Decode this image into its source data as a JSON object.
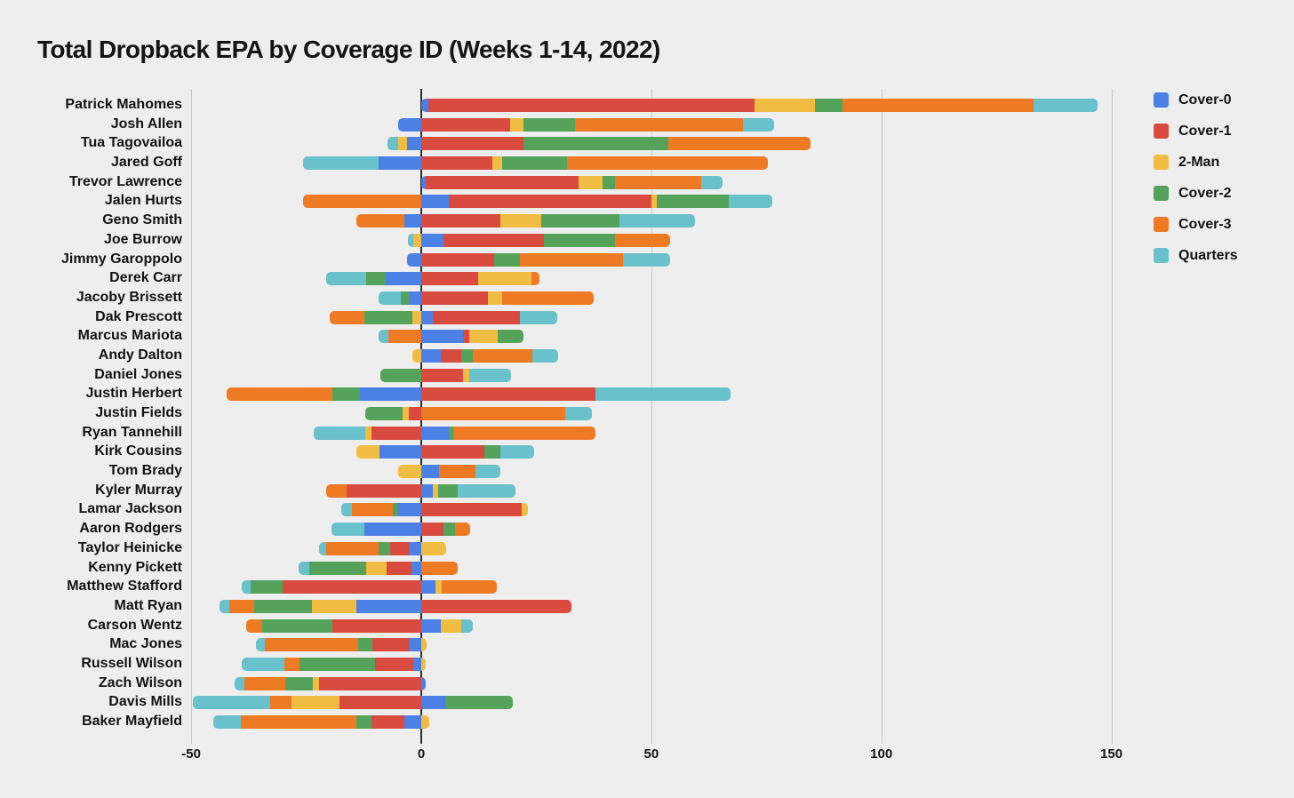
{
  "title": "Total Dropback EPA by Coverage ID (Weeks 1-14, 2022)",
  "colors": {
    "cover0": "#4b80e4",
    "cover1": "#d94b3e",
    "twoman": "#f1bc42",
    "cover2": "#55a25b",
    "cover3": "#ee7a24",
    "quarters": "#68c1cb",
    "background": "#eeeeee",
    "gridline": "#c9c9c9",
    "zero_line": "#2e2e2e",
    "text": "#141414"
  },
  "legend": {
    "items": [
      "Cover-0",
      "Cover-1",
      "2-Man",
      "Cover-2",
      "Cover-3",
      "Quarters"
    ]
  },
  "chart_data": {
    "type": "bar",
    "orientation": "horizontal",
    "stacked": true,
    "title": "Total Dropback EPA by Coverage ID (Weeks 1-14, 2022)",
    "xlabel": "",
    "ylabel": "",
    "x_ticks": [
      -50,
      0,
      50,
      100,
      150
    ],
    "xlim": [
      -52,
      157
    ],
    "grid": true,
    "legend_position": "top-right",
    "categories": [
      "Patrick Mahomes",
      "Josh Allen",
      "Tua Tagovailoa",
      "Jared Goff",
      "Trevor Lawrence",
      "Jalen Hurts",
      "Geno Smith",
      "Joe Burrow",
      "Jimmy Garoppolo",
      "Derek Carr",
      "Jacoby Brissett",
      "Dak Prescott",
      "Marcus Mariota",
      "Andy Dalton",
      "Daniel Jones",
      "Justin Herbert",
      "Justin Fields",
      "Ryan Tannehill",
      "Kirk Cousins",
      "Tom Brady",
      "Kyler Murray",
      "Lamar Jackson",
      "Aaron Rodgers",
      "Taylor Heinicke",
      "Kenny Pickett",
      "Matthew Stafford",
      "Matt Ryan",
      "Carson Wentz",
      "Mac Jones",
      "Russell Wilson",
      "Zach Wilson",
      "Davis Mills",
      "Baker Mayfield"
    ],
    "series": [
      {
        "name": "Cover-0",
        "color_key": "cover0",
        "values": [
          1.5,
          -5.0,
          -3.1,
          -9.3,
          1.0,
          6.0,
          -3.7,
          4.9,
          -3.0,
          -7.7,
          -2.7,
          2.5,
          9.1,
          4.2,
          0,
          -13.3,
          0,
          6.0,
          -9.1,
          3.9,
          2.5,
          -5.0,
          -12.4,
          -2.7,
          -2.1,
          3.0,
          -14.1,
          4.2,
          -2.7,
          -1.7,
          0.9,
          5.2,
          -3.7
        ]
      },
      {
        "name": "Cover-1",
        "color_key": "cover1",
        "values": [
          71.0,
          19.3,
          22.2,
          15.5,
          33.2,
          44.0,
          17.2,
          21.7,
          15.8,
          12.4,
          14.5,
          18.9,
          1.3,
          4.5,
          9.1,
          37.9,
          -2.7,
          -10.8,
          13.7,
          0,
          -16.2,
          21.8,
          4.9,
          -4.1,
          -5.4,
          -30.1,
          32.6,
          -19.3,
          -7.9,
          -8.3,
          -22.2,
          -17.8,
          -7.1
        ]
      },
      {
        "name": "2-Man",
        "color_key": "twoman",
        "values": [
          13.0,
          2.9,
          -1.9,
          2.0,
          5.3,
          1.2,
          8.9,
          -1.7,
          0,
          11.6,
          3.1,
          -2.0,
          6.2,
          -1.9,
          1.3,
          0,
          -1.3,
          -1.4,
          -5.0,
          -5.0,
          1.2,
          1.4,
          0,
          5.5,
          -4.5,
          1.4,
          -9.6,
          4.5,
          1.2,
          1.0,
          -1.3,
          -10.4,
          1.8
        ]
      },
      {
        "name": "Cover-2",
        "color_key": "cover2",
        "values": [
          6.0,
          11.3,
          31.5,
          14.2,
          2.7,
          15.6,
          16.9,
          15.5,
          5.6,
          -4.3,
          -1.7,
          -10.3,
          5.6,
          2.5,
          -8.9,
          -6.0,
          -8.2,
          1.0,
          3.5,
          0,
          4.2,
          -1.2,
          2.5,
          -2.5,
          -12.3,
          -7.0,
          -12.6,
          -15.3,
          -3.1,
          -16.4,
          -6.0,
          14.7,
          -3.3
        ]
      },
      {
        "name": "Cover-3",
        "color_key": "cover3",
        "values": [
          41.5,
          36.5,
          31.0,
          43.6,
          18.7,
          -25.7,
          -10.4,
          12.0,
          22.4,
          1.7,
          19.9,
          -7.6,
          -7.1,
          13.0,
          0,
          -23.0,
          31.3,
          30.9,
          0,
          7.9,
          -4.5,
          -8.9,
          3.2,
          -11.4,
          7.9,
          12.1,
          -5.4,
          -3.4,
          -20.3,
          -3.3,
          -8.9,
          -4.6,
          -25.1
        ]
      },
      {
        "name": "Quarters",
        "color_key": "quarters",
        "values": [
          14.0,
          6.7,
          -2.3,
          -16.4,
          4.6,
          9.5,
          16.4,
          -1.2,
          10.3,
          -8.7,
          -4.9,
          8.1,
          -2.2,
          5.6,
          9.1,
          29.3,
          5.8,
          -11.2,
          7.3,
          5.4,
          12.5,
          -2.3,
          -7.1,
          -1.5,
          -2.3,
          -1.9,
          -2.2,
          2.5,
          -1.9,
          -9.3,
          -2.1,
          -16.8,
          -6.0
        ]
      }
    ]
  }
}
